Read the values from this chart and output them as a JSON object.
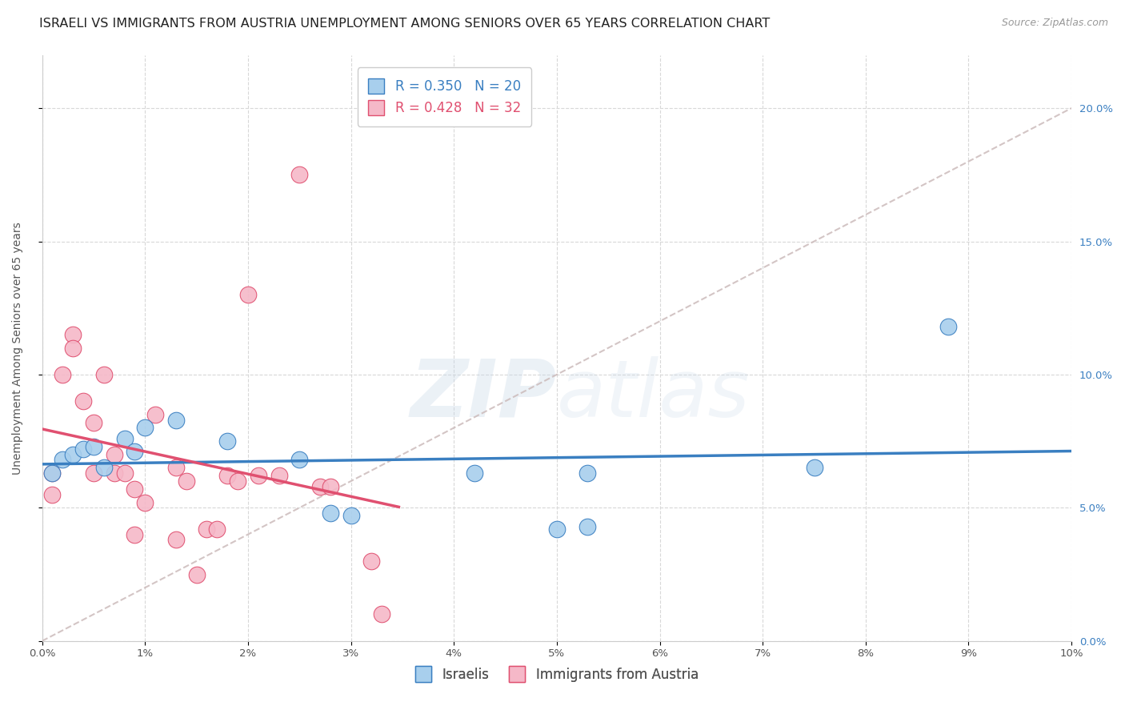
{
  "title": "ISRAELI VS IMMIGRANTS FROM AUSTRIA UNEMPLOYMENT AMONG SENIORS OVER 65 YEARS CORRELATION CHART",
  "source": "Source: ZipAtlas.com",
  "ylabel": "Unemployment Among Seniors over 65 years",
  "xlim": [
    0.0,
    0.1
  ],
  "ylim": [
    0.0,
    0.22
  ],
  "xticks": [
    0.0,
    0.01,
    0.02,
    0.03,
    0.04,
    0.05,
    0.06,
    0.07,
    0.08,
    0.09,
    0.1
  ],
  "yticks": [
    0.0,
    0.05,
    0.1,
    0.15,
    0.2
  ],
  "background_color": "#ffffff",
  "grid_color": "#d8d8d8",
  "israelis_x": [
    0.001,
    0.002,
    0.003,
    0.004,
    0.005,
    0.006,
    0.008,
    0.009,
    0.01,
    0.013,
    0.018,
    0.025,
    0.028,
    0.03,
    0.042,
    0.05,
    0.053,
    0.053,
    0.075,
    0.088
  ],
  "israelis_y": [
    0.063,
    0.068,
    0.07,
    0.072,
    0.073,
    0.065,
    0.076,
    0.071,
    0.08,
    0.083,
    0.075,
    0.068,
    0.048,
    0.047,
    0.063,
    0.042,
    0.043,
    0.063,
    0.065,
    0.118
  ],
  "austria_x": [
    0.001,
    0.001,
    0.002,
    0.003,
    0.003,
    0.004,
    0.005,
    0.005,
    0.006,
    0.007,
    0.007,
    0.008,
    0.009,
    0.009,
    0.01,
    0.011,
    0.013,
    0.014,
    0.015,
    0.016,
    0.017,
    0.018,
    0.019,
    0.02,
    0.021,
    0.023,
    0.025,
    0.027,
    0.028,
    0.032,
    0.033,
    0.013
  ],
  "austria_y": [
    0.063,
    0.055,
    0.1,
    0.115,
    0.11,
    0.09,
    0.082,
    0.063,
    0.1,
    0.07,
    0.063,
    0.063,
    0.057,
    0.04,
    0.052,
    0.085,
    0.065,
    0.06,
    0.025,
    0.042,
    0.042,
    0.062,
    0.06,
    0.13,
    0.062,
    0.062,
    0.175,
    0.058,
    0.058,
    0.03,
    0.01,
    0.038
  ],
  "israeli_color": "#a8cfed",
  "austria_color": "#f5b8c8",
  "israeli_line_color": "#3a7fc1",
  "austria_line_color": "#e05070",
  "diagonal_color": "#ccbbbb",
  "R_israeli": 0.35,
  "N_israeli": 20,
  "R_austria": 0.428,
  "N_austria": 32,
  "legend_israelis": "Israelis",
  "legend_austria": "Immigrants from Austria",
  "title_fontsize": 11.5,
  "axis_label_fontsize": 10,
  "tick_fontsize": 9.5,
  "legend_fontsize": 12,
  "source_fontsize": 9
}
